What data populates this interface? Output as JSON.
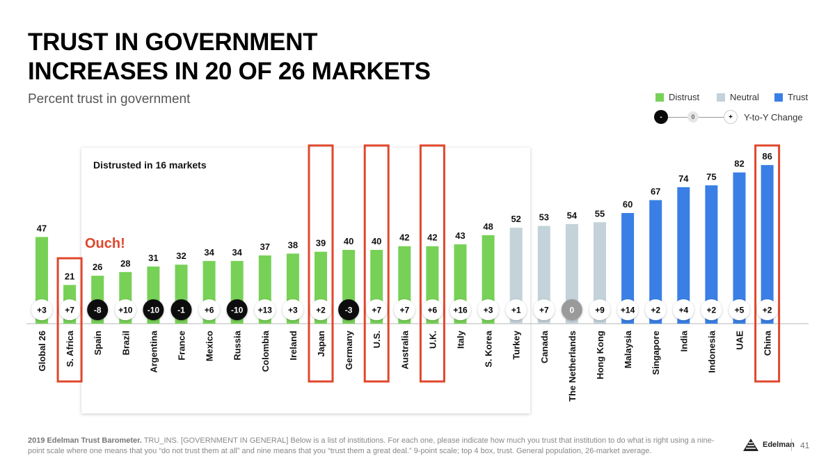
{
  "header": {
    "title_line1": "TRUST IN GOVERNMENT",
    "title_line2": "INCREASES IN 20 OF 26 MARKETS",
    "subtitle": "Percent trust in government"
  },
  "legend": {
    "distrust": "Distrust",
    "neutral": "Neutral",
    "trust": "Trust",
    "change_label": "Y-to-Y Change",
    "neg_symbol": "-",
    "zero_symbol": "0",
    "pos_symbol": "+"
  },
  "colors": {
    "distrust": "#77d157",
    "neutral": "#c4d2da",
    "trust": "#3a7fe6",
    "highlight": "#e0472c",
    "negative_bubble": "#0a0a0a",
    "zero_bubble": "#9a9a9a"
  },
  "annotations": {
    "panel_label": "Distrusted in 16 markets",
    "ouch": "Ouch!"
  },
  "chart_data": {
    "type": "bar",
    "title": "Percent trust in government",
    "ylim": [
      0,
      100
    ],
    "categories": [
      "Global 26",
      "S. Africa",
      "Spain",
      "Brazil",
      "Argentina",
      "France",
      "Mexico",
      "Russia",
      "Colombia",
      "Ireland",
      "Japan",
      "Germany",
      "U.S.",
      "Australia",
      "U.K.",
      "Italy",
      "S. Korea",
      "Turkey",
      "Canada",
      "The Netherlands",
      "Hong Kong",
      "Malaysia",
      "Singapore",
      "India",
      "Indonesia",
      "UAE",
      "China"
    ],
    "values": [
      47,
      21,
      26,
      28,
      31,
      32,
      34,
      34,
      37,
      38,
      39,
      40,
      40,
      42,
      42,
      43,
      48,
      52,
      53,
      54,
      55,
      60,
      67,
      74,
      75,
      82,
      86
    ],
    "changes": [
      "+3",
      "+7",
      "-8",
      "+10",
      "-10",
      "-1",
      "+6",
      "-10",
      "+13",
      "+3",
      "+2",
      "-3",
      "+7",
      "+7",
      "+6",
      "+16",
      "+3",
      "+1",
      "+7",
      "0",
      "+9",
      "+14",
      "+2",
      "+4",
      "+2",
      "+5",
      "+2"
    ],
    "groups": [
      "distrust",
      "distrust",
      "distrust",
      "distrust",
      "distrust",
      "distrust",
      "distrust",
      "distrust",
      "distrust",
      "distrust",
      "distrust",
      "distrust",
      "distrust",
      "distrust",
      "distrust",
      "distrust",
      "distrust",
      "neutral",
      "neutral",
      "neutral",
      "neutral",
      "trust",
      "trust",
      "trust",
      "trust",
      "trust",
      "trust"
    ],
    "highlighted": [
      "S. Africa",
      "Japan",
      "U.S.",
      "U.K.",
      "China"
    ]
  },
  "footer": {
    "source_bold": "2019 Edelman Trust Barometer.",
    "source_text": " TRU_INS. [GOVERNMENT IN GENERAL] Below is a list of institutions. For each one, please indicate how much you trust that institution to do what is right using a nine-point scale where one means that you “do not trust them at all” and nine means that you “trust them a great deal.” 9-point scale; top 4 box, trust. General population, 26-market average.",
    "brand": "Edelman",
    "page": "41"
  }
}
